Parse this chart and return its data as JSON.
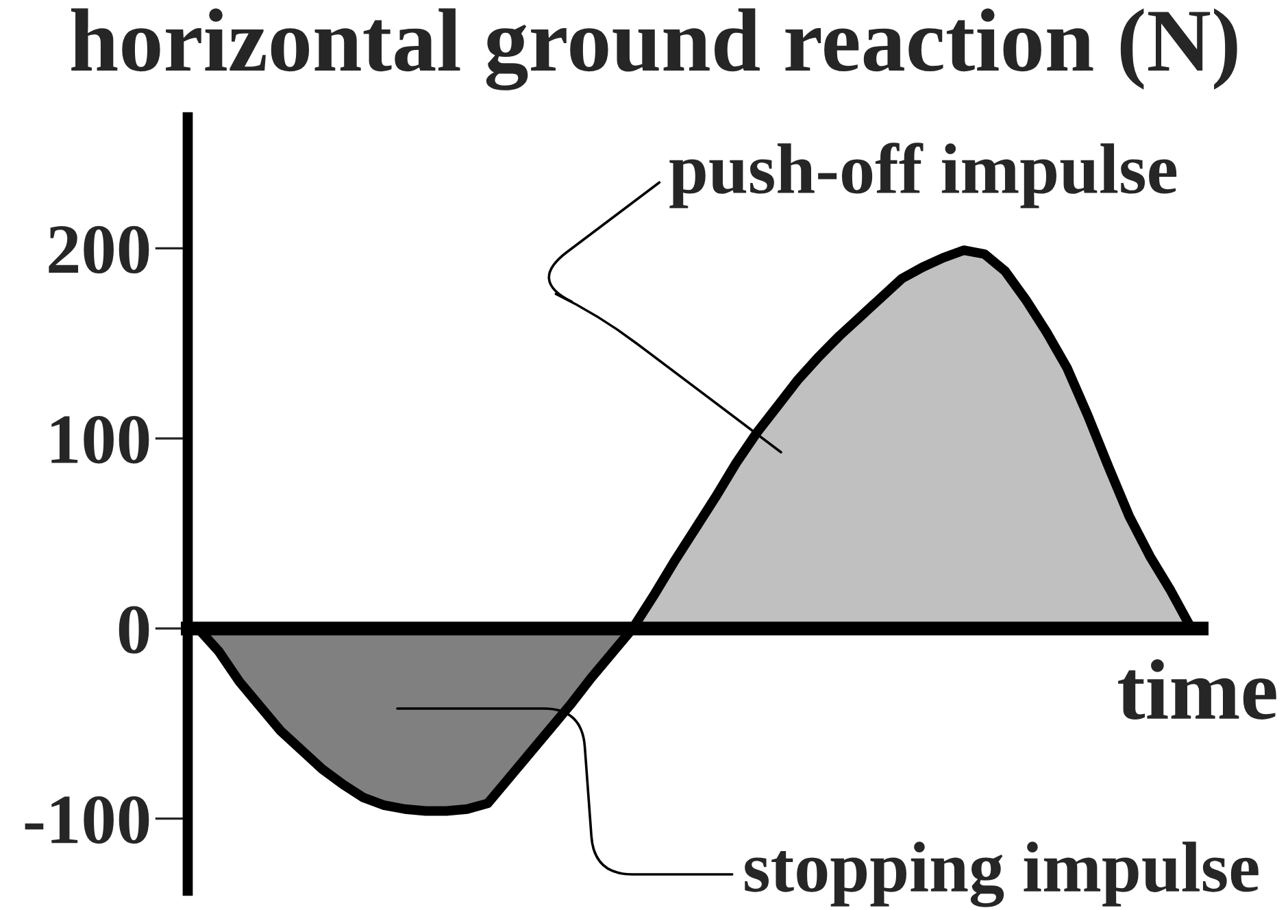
{
  "chart_data": {
    "type": "area",
    "title": "horizontal ground reaction (N)",
    "xlabel": "time",
    "categories": [
      null,
      null,
      null,
      null,
      null,
      null,
      null,
      null,
      null,
      null,
      null,
      null,
      null,
      null,
      null,
      null,
      null,
      null,
      null,
      null,
      null,
      null,
      null,
      null,
      null,
      null,
      null,
      null,
      null,
      null,
      null,
      null,
      null,
      null,
      null,
      null,
      null,
      null,
      null,
      null,
      null,
      null,
      null,
      null,
      null,
      null,
      null,
      null,
      null
    ],
    "series": [
      {
        "color": "#808080",
        "values": [
          0,
          -12,
          -28,
          -41,
          -54,
          -64,
          -74,
          -82,
          -89,
          -93,
          -95,
          -96,
          -96,
          -95,
          -92,
          -79,
          -66,
          -53,
          -40,
          -26,
          -13,
          0,
          0,
          0,
          0,
          0,
          0,
          0,
          0,
          0,
          0,
          0,
          0,
          0,
          0,
          0,
          0,
          0,
          0,
          0,
          0,
          0,
          0,
          0,
          0,
          0,
          0,
          0,
          0
        ]
      },
      {
        "color": "#c0c0c0",
        "values": [
          0,
          0,
          0,
          0,
          0,
          0,
          0,
          0,
          0,
          0,
          0,
          0,
          0,
          0,
          0,
          0,
          0,
          0,
          0,
          0,
          0,
          0,
          17,
          35,
          52,
          69,
          87,
          103,
          117,
          131,
          143,
          154,
          164,
          174,
          184,
          190,
          195,
          199,
          197,
          188,
          173,
          156,
          137,
          112,
          85,
          59,
          38,
          20,
          0
        ]
      }
    ],
    "ylim": [
      -138,
      269
    ],
    "yticks": [
      -100,
      0,
      100,
      200
    ],
    "annotations": [
      "push-off impulse",
      "stopping impulse"
    ]
  }
}
